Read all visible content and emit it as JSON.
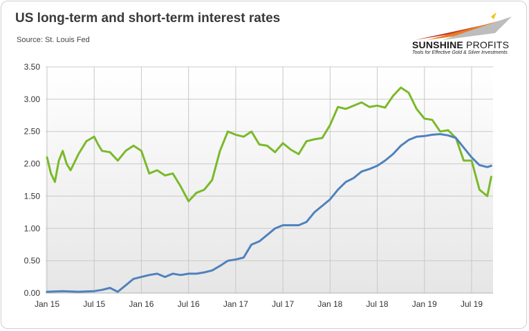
{
  "header": {
    "title": "US long-term and short-term interest rates",
    "source": "Source: St. Louis Fed"
  },
  "logo": {
    "name_bold": "SUNSHINE",
    "name_light": "PROFITS",
    "tagline": "Tools for Effective Gold & Silver Investments"
  },
  "colors": {
    "long_term": "#7ab929",
    "short_term": "#4f81bd",
    "plot_bg_top": "#ffffff",
    "plot_bg_bottom": "#e6e6e6"
  },
  "chart_data": {
    "type": "line",
    "title": "US long-term and short-term interest rates",
    "xlabel": "",
    "ylabel": "",
    "ylim": [
      0,
      3.5
    ],
    "yticks": [
      "0.00",
      "0.50",
      "1.00",
      "1.50",
      "2.00",
      "2.50",
      "3.00",
      "3.50"
    ],
    "xticks": [
      "Jan 15",
      "Jul 15",
      "Jan 16",
      "Jul 16",
      "Jan 17",
      "Jul 17",
      "Jan 18",
      "Jul 18",
      "Jan 19",
      "Jul 19"
    ],
    "grid": true,
    "legend": "none",
    "series": [
      {
        "color": "#7ab929",
        "points": [
          [
            "Jan 15",
            2.1
          ],
          [
            "Jan 15 +0.5m",
            1.85
          ],
          [
            "Feb 15",
            1.72
          ],
          [
            "Feb 15 +0.5m",
            2.05
          ],
          [
            "Mar 15",
            2.2
          ],
          [
            "Mar 15 +0.5m",
            2.0
          ],
          [
            "Apr 15",
            1.9
          ],
          [
            "May 15",
            2.15
          ],
          [
            "Jun 15",
            2.35
          ],
          [
            "Jul 15",
            2.42
          ],
          [
            "Jul 15 +0.5m",
            2.3
          ],
          [
            "Aug 15",
            2.2
          ],
          [
            "Sep 15",
            2.18
          ],
          [
            "Oct 15",
            2.05
          ],
          [
            "Nov 15",
            2.2
          ],
          [
            "Dec 15",
            2.28
          ],
          [
            "Jan 16",
            2.2
          ],
          [
            "Feb 16",
            1.85
          ],
          [
            "Mar 16",
            1.9
          ],
          [
            "Apr 16",
            1.82
          ],
          [
            "May 16",
            1.85
          ],
          [
            "Jun 16",
            1.65
          ],
          [
            "Jul 16",
            1.42
          ],
          [
            "Aug 16",
            1.55
          ],
          [
            "Sep 16",
            1.6
          ],
          [
            "Oct 16",
            1.75
          ],
          [
            "Nov 16",
            2.2
          ],
          [
            "Dec 16",
            2.5
          ],
          [
            "Jan 17",
            2.45
          ],
          [
            "Feb 17",
            2.42
          ],
          [
            "Mar 17",
            2.5
          ],
          [
            "Apr 17",
            2.3
          ],
          [
            "May 17",
            2.28
          ],
          [
            "Jun 17",
            2.18
          ],
          [
            "Jul 17",
            2.32
          ],
          [
            "Aug 17",
            2.22
          ],
          [
            "Sep 17",
            2.15
          ],
          [
            "Oct 17",
            2.35
          ],
          [
            "Nov 17",
            2.38
          ],
          [
            "Dec 17",
            2.4
          ],
          [
            "Jan 18",
            2.6
          ],
          [
            "Feb 18",
            2.88
          ],
          [
            "Mar 18",
            2.85
          ],
          [
            "Apr 18",
            2.9
          ],
          [
            "May 18",
            2.95
          ],
          [
            "Jun 18",
            2.88
          ],
          [
            "Jul 18",
            2.9
          ],
          [
            "Aug 18",
            2.87
          ],
          [
            "Sep 18",
            3.05
          ],
          [
            "Oct 18",
            3.18
          ],
          [
            "Nov 18",
            3.1
          ],
          [
            "Dec 18",
            2.85
          ],
          [
            "Jan 19",
            2.7
          ],
          [
            "Feb 19",
            2.68
          ],
          [
            "Mar 19",
            2.5
          ],
          [
            "Apr 19",
            2.52
          ],
          [
            "May 19",
            2.4
          ],
          [
            "Jun 19",
            2.05
          ],
          [
            "Jul 19",
            2.05
          ],
          [
            "Aug 19",
            1.6
          ],
          [
            "Sep 19",
            1.5
          ],
          [
            "Sep 19 +0.5m",
            1.8
          ]
        ]
      },
      {
        "color": "#4f81bd",
        "points": [
          [
            "Jan 15",
            0.02
          ],
          [
            "Mar 15",
            0.03
          ],
          [
            "May 15",
            0.02
          ],
          [
            "Jul 15",
            0.03
          ],
          [
            "Aug 15",
            0.05
          ],
          [
            "Sep 15",
            0.08
          ],
          [
            "Oct 15",
            0.02
          ],
          [
            "Nov 15",
            0.12
          ],
          [
            "Dec 15",
            0.22
          ],
          [
            "Jan 16",
            0.25
          ],
          [
            "Feb 16",
            0.28
          ],
          [
            "Mar 16",
            0.3
          ],
          [
            "Apr 16",
            0.25
          ],
          [
            "May 16",
            0.3
          ],
          [
            "Jun 16",
            0.28
          ],
          [
            "Jul 16",
            0.3
          ],
          [
            "Aug 16",
            0.3
          ],
          [
            "Sep 16",
            0.32
          ],
          [
            "Oct 16",
            0.35
          ],
          [
            "Nov 16",
            0.42
          ],
          [
            "Dec 16",
            0.5
          ],
          [
            "Jan 17",
            0.52
          ],
          [
            "Feb 17",
            0.55
          ],
          [
            "Mar 17",
            0.75
          ],
          [
            "Apr 17",
            0.8
          ],
          [
            "May 17",
            0.9
          ],
          [
            "Jun 17",
            1.0
          ],
          [
            "Jul 17",
            1.05
          ],
          [
            "Aug 17",
            1.05
          ],
          [
            "Sep 17",
            1.05
          ],
          [
            "Oct 17",
            1.1
          ],
          [
            "Nov 17",
            1.25
          ],
          [
            "Dec 17",
            1.35
          ],
          [
            "Jan 18",
            1.45
          ],
          [
            "Feb 18",
            1.6
          ],
          [
            "Mar 18",
            1.72
          ],
          [
            "Apr 18",
            1.78
          ],
          [
            "May 18",
            1.88
          ],
          [
            "Jun 18",
            1.92
          ],
          [
            "Jul 18",
            1.97
          ],
          [
            "Aug 18",
            2.05
          ],
          [
            "Sep 18",
            2.15
          ],
          [
            "Oct 18",
            2.28
          ],
          [
            "Nov 18",
            2.37
          ],
          [
            "Dec 18",
            2.42
          ],
          [
            "Jan 19",
            2.43
          ],
          [
            "Feb 19",
            2.45
          ],
          [
            "Mar 19",
            2.46
          ],
          [
            "Apr 19",
            2.44
          ],
          [
            "May 19",
            2.4
          ],
          [
            "Jun 19",
            2.25
          ],
          [
            "Jul 19",
            2.1
          ],
          [
            "Aug 19",
            1.98
          ],
          [
            "Sep 19",
            1.95
          ],
          [
            "Sep 19 +0.5m",
            1.97
          ]
        ]
      }
    ]
  }
}
